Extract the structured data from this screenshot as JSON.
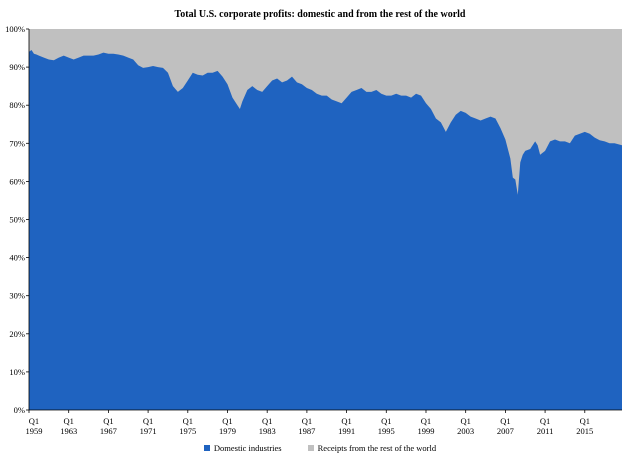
{
  "chart_data": {
    "type": "area",
    "stacked": true,
    "title": "Total U.S. corporate profits: domestic and from the rest of the world",
    "xlabel": "",
    "ylabel": "",
    "ylim": [
      0,
      100
    ],
    "y_ticks": [
      "0%",
      "10%",
      "20%",
      "30%",
      "40%",
      "50%",
      "60%",
      "70%",
      "80%",
      "90%",
      "100%"
    ],
    "x_tick_labels": [
      {
        "quarter": "Q1",
        "year": "1959",
        "x": 1959.0
      },
      {
        "quarter": "Q1",
        "year": "1963",
        "x": 1963.0
      },
      {
        "quarter": "Q1",
        "year": "1967",
        "x": 1967.0
      },
      {
        "quarter": "Q1",
        "year": "1971",
        "x": 1971.0
      },
      {
        "quarter": "Q1",
        "year": "1975",
        "x": 1975.0
      },
      {
        "quarter": "Q1",
        "year": "1979",
        "x": 1979.0
      },
      {
        "quarter": "Q1",
        "year": "1983",
        "x": 1983.0
      },
      {
        "quarter": "Q1",
        "year": "1987",
        "x": 1987.0
      },
      {
        "quarter": "Q1",
        "year": "1991",
        "x": 1991.0
      },
      {
        "quarter": "Q1",
        "year": "1995",
        "x": 1995.0
      },
      {
        "quarter": "Q1",
        "year": "1999",
        "x": 1999.0
      },
      {
        "quarter": "Q1",
        "year": "2003",
        "x": 2003.0
      },
      {
        "quarter": "Q1",
        "year": "2007",
        "x": 2007.0
      },
      {
        "quarter": "Q1",
        "year": "2011",
        "x": 2011.0
      },
      {
        "quarter": "Q1",
        "year": "2015",
        "x": 2015.0
      }
    ],
    "x_range": [
      1959.0,
      2018.75
    ],
    "grid": false,
    "legend_position": "bottom",
    "colors": {
      "domestic": "#1f63c0",
      "rest_of_world": "#c0c0c0"
    },
    "series": [
      {
        "name": "Domestic industries",
        "points": [
          [
            1959.0,
            94.0
          ],
          [
            1959.25,
            94.5
          ],
          [
            1959.5,
            93.5
          ],
          [
            1959.75,
            93.3
          ],
          [
            1960.0,
            93.0
          ],
          [
            1960.5,
            92.5
          ],
          [
            1961.0,
            92.0
          ],
          [
            1961.5,
            91.8
          ],
          [
            1962.0,
            92.5
          ],
          [
            1962.5,
            93.0
          ],
          [
            1963.0,
            92.5
          ],
          [
            1963.5,
            92.0
          ],
          [
            1964.0,
            92.5
          ],
          [
            1964.5,
            93.0
          ],
          [
            1965.0,
            93.0
          ],
          [
            1965.5,
            93.0
          ],
          [
            1966.0,
            93.3
          ],
          [
            1966.5,
            93.8
          ],
          [
            1967.0,
            93.5
          ],
          [
            1967.5,
            93.5
          ],
          [
            1968.0,
            93.3
          ],
          [
            1968.5,
            93.0
          ],
          [
            1969.0,
            92.5
          ],
          [
            1969.5,
            92.0
          ],
          [
            1970.0,
            90.5
          ],
          [
            1970.5,
            89.8
          ],
          [
            1971.0,
            90.0
          ],
          [
            1971.5,
            90.3
          ],
          [
            1972.0,
            90.0
          ],
          [
            1972.5,
            89.8
          ],
          [
            1973.0,
            88.5
          ],
          [
            1973.5,
            85.0
          ],
          [
            1974.0,
            83.5
          ],
          [
            1974.5,
            84.5
          ],
          [
            1975.0,
            86.5
          ],
          [
            1975.5,
            88.5
          ],
          [
            1976.0,
            88.0
          ],
          [
            1976.5,
            87.8
          ],
          [
            1977.0,
            88.5
          ],
          [
            1977.5,
            88.5
          ],
          [
            1978.0,
            89.0
          ],
          [
            1978.5,
            87.5
          ],
          [
            1979.0,
            85.5
          ],
          [
            1979.5,
            82.0
          ],
          [
            1980.0,
            80.0
          ],
          [
            1980.25,
            79.0
          ],
          [
            1980.5,
            81.0
          ],
          [
            1981.0,
            84.0
          ],
          [
            1981.5,
            85.0
          ],
          [
            1982.0,
            84.0
          ],
          [
            1982.5,
            83.5
          ],
          [
            1983.0,
            85.0
          ],
          [
            1983.5,
            86.5
          ],
          [
            1984.0,
            87.0
          ],
          [
            1984.5,
            86.0
          ],
          [
            1985.0,
            86.5
          ],
          [
            1985.5,
            87.5
          ],
          [
            1986.0,
            86.0
          ],
          [
            1986.5,
            85.5
          ],
          [
            1987.0,
            84.5
          ],
          [
            1987.5,
            84.0
          ],
          [
            1988.0,
            83.0
          ],
          [
            1988.5,
            82.5
          ],
          [
            1989.0,
            82.5
          ],
          [
            1989.5,
            81.5
          ],
          [
            1990.0,
            81.0
          ],
          [
            1990.5,
            80.5
          ],
          [
            1991.0,
            82.0
          ],
          [
            1991.5,
            83.5
          ],
          [
            1992.0,
            84.0
          ],
          [
            1992.5,
            84.5
          ],
          [
            1993.0,
            83.5
          ],
          [
            1993.5,
            83.5
          ],
          [
            1994.0,
            84.0
          ],
          [
            1994.5,
            83.0
          ],
          [
            1995.0,
            82.5
          ],
          [
            1995.5,
            82.5
          ],
          [
            1996.0,
            83.0
          ],
          [
            1996.5,
            82.5
          ],
          [
            1997.0,
            82.5
          ],
          [
            1997.5,
            82.0
          ],
          [
            1998.0,
            83.0
          ],
          [
            1998.5,
            82.5
          ],
          [
            1999.0,
            80.5
          ],
          [
            1999.5,
            79.0
          ],
          [
            2000.0,
            76.5
          ],
          [
            2000.5,
            75.5
          ],
          [
            2001.0,
            73.0
          ],
          [
            2001.5,
            75.5
          ],
          [
            2002.0,
            77.5
          ],
          [
            2002.5,
            78.5
          ],
          [
            2003.0,
            78.0
          ],
          [
            2003.5,
            77.0
          ],
          [
            2004.0,
            76.5
          ],
          [
            2004.5,
            76.0
          ],
          [
            2005.0,
            76.5
          ],
          [
            2005.5,
            77.0
          ],
          [
            2006.0,
            76.5
          ],
          [
            2006.5,
            74.0
          ],
          [
            2007.0,
            71.0
          ],
          [
            2007.5,
            66.0
          ],
          [
            2007.75,
            61.0
          ],
          [
            2008.0,
            60.5
          ],
          [
            2008.25,
            56.5
          ],
          [
            2008.5,
            65.0
          ],
          [
            2008.75,
            67.0
          ],
          [
            2009.0,
            68.0
          ],
          [
            2009.5,
            68.5
          ],
          [
            2010.0,
            70.5
          ],
          [
            2010.25,
            69.5
          ],
          [
            2010.5,
            67.0
          ],
          [
            2011.0,
            68.0
          ],
          [
            2011.5,
            70.5
          ],
          [
            2012.0,
            71.0
          ],
          [
            2012.5,
            70.5
          ],
          [
            2013.0,
            70.5
          ],
          [
            2013.5,
            70.0
          ],
          [
            2014.0,
            72.0
          ],
          [
            2014.5,
            72.5
          ],
          [
            2015.0,
            73.0
          ],
          [
            2015.5,
            72.5
          ],
          [
            2016.0,
            71.5
          ],
          [
            2016.5,
            70.8
          ],
          [
            2017.0,
            70.5
          ],
          [
            2017.5,
            70.0
          ],
          [
            2018.0,
            70.0
          ],
          [
            2018.75,
            69.5
          ]
        ]
      },
      {
        "name": "Receipts from the rest of the world",
        "fills_to": 100
      }
    ]
  }
}
